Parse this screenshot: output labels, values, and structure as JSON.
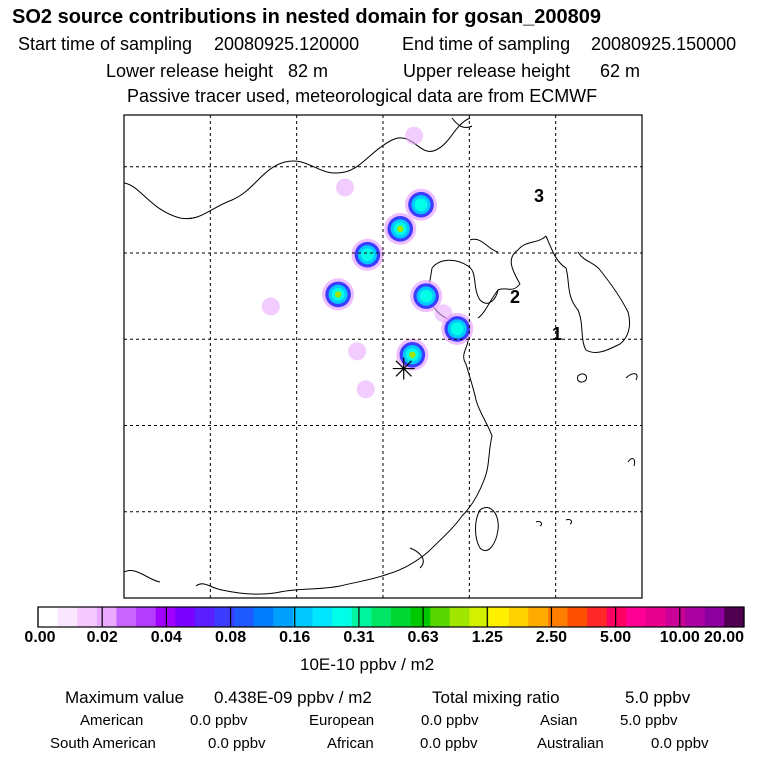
{
  "header": {
    "title": "SO2 source contributions in nested domain for gosan_200809",
    "start_label": "Start time of sampling",
    "start_value": "20080925.120000",
    "end_label": "End time of sampling",
    "end_value": "20080925.150000",
    "lower_label": "Lower release height",
    "lower_value": "82 m",
    "upper_label": "Upper release height",
    "upper_value": "62 m",
    "note": "Passive tracer used, meteorological data are from ECMWF"
  },
  "map": {
    "labels": [
      "1",
      "2",
      "3"
    ],
    "hotspots": [
      {
        "lon": 127.2,
        "lat": 42.8,
        "level": 2
      },
      {
        "lon": 126.0,
        "lat": 41.4,
        "level": 3
      },
      {
        "lon": 124.1,
        "lat": 39.9,
        "level": 2
      },
      {
        "lon": 122.4,
        "lat": 37.6,
        "level": 3
      },
      {
        "lon": 127.5,
        "lat": 37.5,
        "level": 2
      },
      {
        "lon": 129.3,
        "lat": 35.6,
        "level": 2
      },
      {
        "lon": 126.7,
        "lat": 34.1,
        "level": 3
      }
    ],
    "receptor": {
      "lon": 126.2,
      "lat": 33.3
    }
  },
  "colorbar": {
    "colors": [
      "#ffffff",
      "#fbe6ff",
      "#f5c9ff",
      "#eaaaff",
      "#c864ff",
      "#b43cff",
      "#a000ff",
      "#7a00ff",
      "#5a1eff",
      "#3c3cff",
      "#1e5aff",
      "#007dff",
      "#00a0ff",
      "#00c8ff",
      "#00e6ff",
      "#00ffe6",
      "#00f5a0",
      "#00e664",
      "#00d732",
      "#00c800",
      "#5ad700",
      "#a0e600",
      "#d2f000",
      "#fff000",
      "#ffd200",
      "#ffaa00",
      "#ff7d00",
      "#ff5000",
      "#ff2828",
      "#ff0064",
      "#ff0096",
      "#e6008c",
      "#c80096",
      "#aa00a0",
      "#8c00a0",
      "#500050"
    ],
    "ticks": [
      "0.00",
      "0.02",
      "0.04",
      "0.08",
      "0.16",
      "0.31",
      "0.63",
      "1.25",
      "2.50",
      "5.00",
      "10.00",
      "20.00"
    ],
    "unit": "10E-10 ppbv / m2"
  },
  "footer": {
    "max_label": "Maximum value",
    "max_value": "0.438E-09 ppbv / m2",
    "total_label": "Total mixing ratio",
    "total_value": "5.0 ppbv",
    "regions": [
      {
        "name": "American",
        "value": "0.0 ppbv"
      },
      {
        "name": "European",
        "value": "0.0 ppbv"
      },
      {
        "name": "Asian",
        "value": "5.0 ppbv"
      },
      {
        "name": "South American",
        "value": "0.0 ppbv"
      },
      {
        "name": "African",
        "value": "0.0 ppbv"
      },
      {
        "name": "Australian",
        "value": "0.0 ppbv"
      }
    ]
  }
}
